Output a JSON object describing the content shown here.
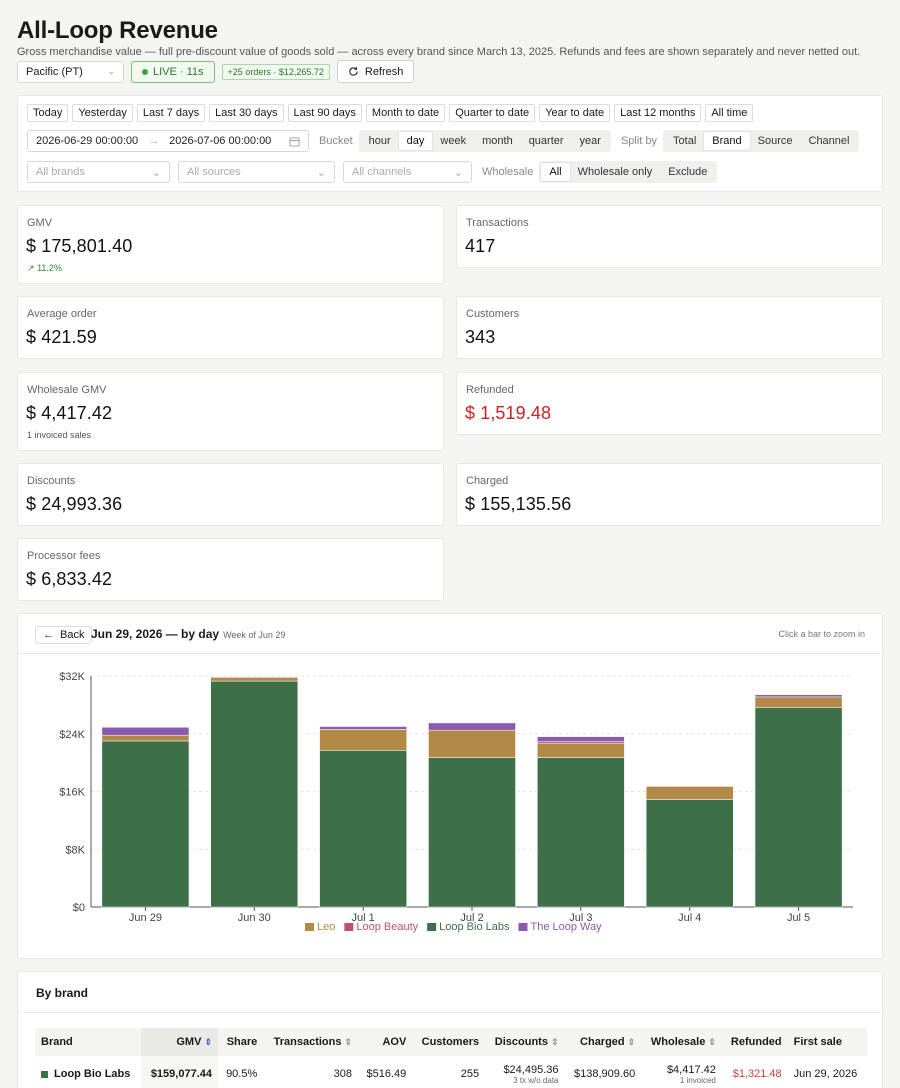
{
  "header": {
    "title": "All-Loop Revenue",
    "subtitle": "Gross merchandise value — full pre-discount value of goods sold — across every brand since March 13, 2025. Refunds and fees are shown separately and never netted out."
  },
  "toolbar": {
    "timezone": "Pacific (PT)",
    "live": "LIVE · 11s",
    "orders_badge": "+25 orders · $12,265.72",
    "refresh": "Refresh"
  },
  "filters": {
    "ranges": [
      "Today",
      "Yesterday",
      "Last 7 days",
      "Last 30 days",
      "Last 90 days",
      "Month to date",
      "Quarter to date",
      "Year to date",
      "Last 12 months",
      "All time"
    ],
    "date_from": "2026-06-29 00:00:00",
    "date_to": "2026-07-06 00:00:00",
    "bucket_label": "Bucket",
    "buckets": [
      "hour",
      "day",
      "week",
      "month",
      "quarter",
      "year"
    ],
    "bucket_selected": "day",
    "split_label": "Split by",
    "splits": [
      "Total",
      "Brand",
      "Source",
      "Channel"
    ],
    "split_selected": "Brand",
    "brands_placeholder": "All brands",
    "sources_placeholder": "All sources",
    "channels_placeholder": "All channels",
    "wholesale_label": "Wholesale",
    "wholesale_opts": [
      "All",
      "Wholesale only",
      "Exclude"
    ],
    "wholesale_selected": "All"
  },
  "stats": {
    "gmv": {
      "title": "GMV",
      "value": "$ 175,801.40",
      "note": "11.2%"
    },
    "transactions": {
      "title": "Transactions",
      "value": "417"
    },
    "aov": {
      "title": "Average order",
      "value": "$ 421.59"
    },
    "customers": {
      "title": "Customers",
      "value": "343"
    },
    "wholesale": {
      "title": "Wholesale GMV",
      "value": "$ 4,417.42",
      "note": "1 invoiced sales"
    },
    "refunded": {
      "title": "Refunded",
      "value": "$ 1,519.48"
    },
    "discounts": {
      "title": "Discounts",
      "value": "$ 24,993.36"
    },
    "charged": {
      "title": "Charged",
      "value": "$ 155,135.56"
    },
    "fees": {
      "title": "Processor fees",
      "value": "$ 6,833.42"
    }
  },
  "chart_header": {
    "back": "Back",
    "title": "Jun 29, 2026 — by day",
    "week": "Week of Jun 29",
    "hint": "Click a bar to zoom in"
  },
  "chart_data": {
    "type": "bar",
    "stacked": true,
    "categories": [
      "Jun 29",
      "Jun 30",
      "Jul 1",
      "Jul 2",
      "Jul 3",
      "Jul 4",
      "Jul 5"
    ],
    "ylim": [
      0,
      32000
    ],
    "yticks": [
      "$0",
      "$8K",
      "$16K",
      "$24K",
      "$32K"
    ],
    "series": [
      {
        "name": "Loop Bio Labs",
        "color": "#3d7048",
        "values": [
          23000,
          31300,
          21700,
          20700,
          20700,
          14900,
          27600
        ]
      },
      {
        "name": "Leo",
        "color": "#b38948",
        "values": [
          800,
          500,
          2900,
          3800,
          2000,
          1800,
          1500
        ]
      },
      {
        "name": "Loop Beauty",
        "color": "#c0507a",
        "values": [
          0,
          0,
          0,
          0,
          200,
          0,
          0
        ]
      },
      {
        "name": "The Loop Way",
        "color": "#8a5cb0",
        "values": [
          1100,
          100,
          400,
          1000,
          700,
          0,
          300
        ]
      }
    ],
    "legend_order": [
      "Leo",
      "Loop Beauty",
      "Loop Bio Labs",
      "The Loop Way"
    ],
    "legend": "bottom",
    "grid": true
  },
  "by_brand": {
    "title": "By brand",
    "columns": [
      "Brand",
      "GMV",
      "Share",
      "Transactions",
      "AOV",
      "Customers",
      "Discounts",
      "Charged",
      "Wholesale",
      "Refunded",
      "First sale"
    ],
    "rows": [
      {
        "brand": "Loop Bio Labs",
        "color": "#3d7048",
        "gmv": "$159,077.44",
        "share": "90.5%",
        "tx": "308",
        "aov": "$516.49",
        "customers": "255",
        "discounts": "$24,495.36",
        "discounts_note": "3 tx w/o data",
        "charged": "$138,909.60",
        "wholesale": "$4,417.42",
        "wholesale_note": "1 invoiced",
        "refunded": "$1,321.48",
        "first_sale": "Jun 29, 2026"
      }
    ]
  },
  "colors": {
    "accent_green": "#3d7048",
    "refund_red": "#c22222",
    "live_green": "#3ea53e"
  }
}
